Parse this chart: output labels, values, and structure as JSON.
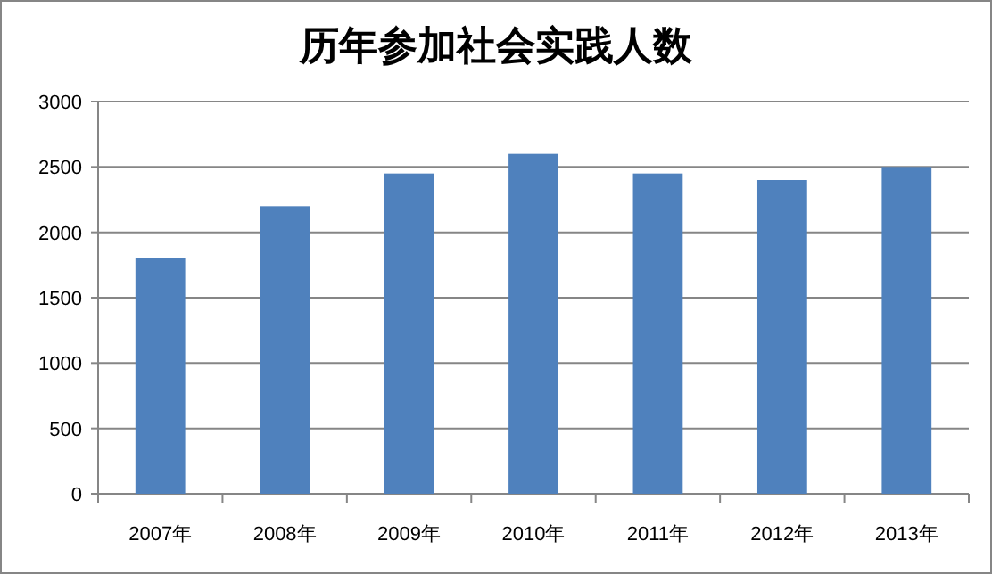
{
  "chart_data": {
    "type": "bar",
    "title": "历年参加社会实践人数",
    "categories": [
      "2007年",
      "2008年",
      "2009年",
      "2010年",
      "2011年",
      "2012年",
      "2013年"
    ],
    "values": [
      1800,
      2200,
      2450,
      2600,
      2450,
      2400,
      2500
    ],
    "color": "#4f81bd",
    "ylim": [
      0,
      3000
    ],
    "yticks": [
      0,
      500,
      1000,
      1500,
      2000,
      2500,
      3000
    ],
    "grid": "y"
  }
}
